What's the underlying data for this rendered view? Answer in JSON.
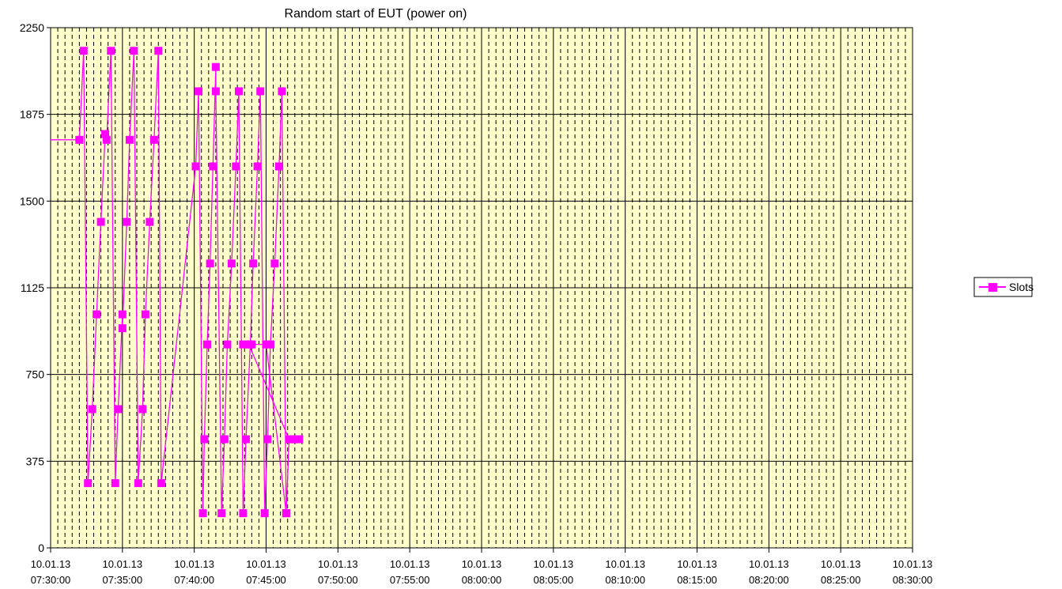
{
  "chart_data": {
    "type": "line",
    "title": "Random start of EUT (power on)",
    "xlabel": "",
    "ylabel": "",
    "ylim": [
      0,
      2250
    ],
    "yticks": [
      "0",
      "375",
      "750",
      "1125",
      "1500",
      "1875",
      "2250"
    ],
    "xlim_minutes": [
      0,
      60
    ],
    "xticks": [
      [
        "10.01.13",
        "07:30:00"
      ],
      [
        "10.01.13",
        "07:35:00"
      ],
      [
        "10.01.13",
        "07:40:00"
      ],
      [
        "10.01.13",
        "07:45:00"
      ],
      [
        "10.01.13",
        "07:50:00"
      ],
      [
        "10.01.13",
        "07:55:00"
      ],
      [
        "10.01.13",
        "08:00:00"
      ],
      [
        "10.01.13",
        "08:05:00"
      ],
      [
        "10.01.13",
        "08:10:00"
      ],
      [
        "10.01.13",
        "08:15:00"
      ],
      [
        "10.01.13",
        "08:20:00"
      ],
      [
        "10.01.13",
        "08:25:00"
      ],
      [
        "10.01.13",
        "08:30:00"
      ]
    ],
    "legend_position": "right",
    "plot_background": "#ffffcc",
    "series": [
      {
        "name": "Slots",
        "color": "#ff00ff",
        "marker": "square",
        "entry": [
          0.0,
          1765
        ],
        "points": [
          [
            2.0,
            1765
          ],
          [
            2.3,
            2150
          ],
          [
            2.6,
            280
          ],
          [
            2.9,
            600
          ],
          [
            3.2,
            1010
          ],
          [
            3.5,
            1410
          ],
          [
            3.8,
            1790
          ],
          [
            3.9,
            1765
          ],
          [
            4.2,
            2150
          ],
          [
            4.5,
            280
          ],
          [
            4.7,
            600
          ],
          [
            5.0,
            1010
          ],
          [
            5.0,
            950
          ],
          [
            5.3,
            1410
          ],
          [
            5.5,
            1765
          ],
          [
            5.8,
            2150
          ],
          [
            6.1,
            280
          ],
          [
            6.4,
            600
          ],
          [
            6.6,
            1010
          ],
          [
            6.9,
            1410
          ],
          [
            7.2,
            1765
          ],
          [
            7.5,
            2150
          ],
          [
            7.7,
            280
          ],
          [
            10.1,
            1650
          ],
          [
            10.3,
            1975
          ],
          [
            10.6,
            150
          ],
          [
            10.7,
            470
          ],
          [
            10.9,
            880
          ],
          [
            11.1,
            1230
          ],
          [
            11.3,
            1650
          ],
          [
            11.5,
            2080
          ],
          [
            11.5,
            1975
          ],
          [
            11.9,
            150
          ],
          [
            12.1,
            470
          ],
          [
            12.3,
            880
          ],
          [
            12.6,
            1230
          ],
          [
            12.9,
            1650
          ],
          [
            13.1,
            1975
          ],
          [
            13.4,
            150
          ],
          [
            13.6,
            470
          ],
          [
            13.9,
            880
          ],
          [
            14.1,
            1230
          ],
          [
            14.4,
            1650
          ],
          [
            14.6,
            1975
          ],
          [
            14.9,
            150
          ],
          [
            15.1,
            470
          ],
          [
            15.3,
            880
          ],
          [
            15.6,
            1230
          ],
          [
            15.9,
            1650
          ],
          [
            16.1,
            1975
          ],
          [
            16.4,
            150
          ],
          [
            16.6,
            470
          ],
          [
            13.8,
            880
          ],
          [
            14.0,
            880
          ],
          [
            13.4,
            880
          ],
          [
            15.0,
            880
          ],
          [
            16.4,
            150
          ],
          [
            16.6,
            470
          ],
          [
            16.8,
            470
          ],
          [
            17.0,
            470
          ],
          [
            17.3,
            470
          ],
          [
            16.9,
            470
          ]
        ]
      }
    ]
  }
}
